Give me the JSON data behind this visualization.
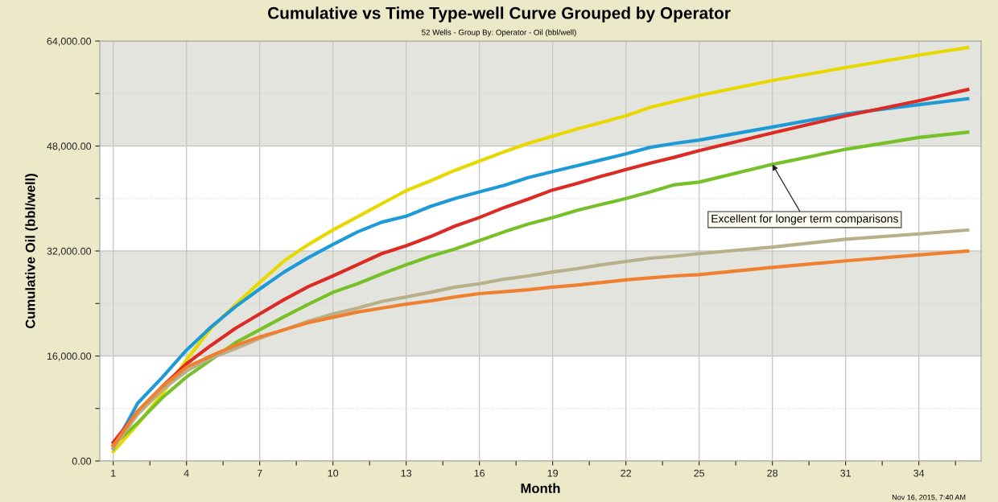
{
  "chart_data": {
    "type": "line",
    "title": "Cumulative vs Time Type-well Curve Grouped by Operator",
    "subtitle": "52 Wells - Group By: Operator - Oil (bbl/well)",
    "xlabel": "Month",
    "ylabel": "Cumulative Oil (bbl/well)",
    "x": [
      1,
      2,
      3,
      4,
      5,
      6,
      7,
      8,
      9,
      10,
      11,
      12,
      13,
      14,
      15,
      16,
      17,
      18,
      19,
      20,
      21,
      22,
      23,
      24,
      25,
      28,
      31,
      34,
      36
    ],
    "series": [
      {
        "color": "#e6d800",
        "values": [
          1400,
          5600,
          10200,
          15400,
          20200,
          23800,
          27200,
          30500,
          33000,
          35200,
          37200,
          39200,
          41200,
          42700,
          44300,
          45700,
          47100,
          48400,
          49500,
          50600,
          51600,
          52600,
          53900,
          54800,
          55700,
          58000,
          59950,
          61850,
          63000
        ]
      },
      {
        "color": "#1e9ad6",
        "values": [
          1900,
          8800,
          12700,
          16900,
          20400,
          23500,
          26200,
          28800,
          31000,
          33000,
          34900,
          36400,
          37300,
          38800,
          40000,
          41000,
          42000,
          43200,
          44100,
          45000,
          45900,
          46800,
          47800,
          48400,
          48900,
          50900,
          52900,
          54300,
          55200
        ]
      },
      {
        "color": "#dc2a24",
        "values": [
          2800,
          7500,
          11300,
          14800,
          17600,
          20200,
          22400,
          24600,
          26600,
          28200,
          29900,
          31600,
          32800,
          34200,
          35800,
          37100,
          38600,
          39900,
          41300,
          42300,
          43400,
          44400,
          45400,
          46300,
          47300,
          50000,
          52600,
          54900,
          56600
        ]
      },
      {
        "color": "#78c02a",
        "values": [
          2400,
          5800,
          9600,
          12800,
          15400,
          18000,
          20000,
          22000,
          23900,
          25700,
          27000,
          28500,
          29900,
          31200,
          32300,
          33600,
          34900,
          36100,
          37100,
          38200,
          39100,
          40000,
          41000,
          42100,
          42500,
          45200,
          47500,
          49300,
          50100
        ]
      },
      {
        "color": "#b8b08a",
        "values": [
          2000,
          7100,
          10800,
          13700,
          15700,
          17100,
          18700,
          20000,
          21300,
          22400,
          23300,
          24300,
          25000,
          25700,
          26500,
          27000,
          27700,
          28200,
          28800,
          29300,
          29900,
          30400,
          30900,
          31200,
          31600,
          32600,
          33800,
          34600,
          35200
        ]
      },
      {
        "color": "#ee8030",
        "values": [
          2300,
          7600,
          11300,
          14300,
          16000,
          17600,
          18900,
          20000,
          21100,
          21900,
          22700,
          23300,
          23900,
          24400,
          25000,
          25500,
          25800,
          26100,
          26500,
          26800,
          27200,
          27600,
          27900,
          28200,
          28400,
          29500,
          30500,
          31400,
          32000
        ]
      }
    ],
    "xlim": [
      0.45,
      36.55
    ],
    "xticks": [
      1,
      {
        "value": 2.5,
        "label": null
      },
      4,
      {
        "value": 5.5,
        "label": null
      },
      7,
      {
        "value": 8.5,
        "label": null
      },
      10,
      {
        "value": 11.5,
        "label": null
      },
      13,
      {
        "value": 14.5,
        "label": null
      },
      16,
      {
        "value": 17.5,
        "label": null
      },
      19,
      {
        "value": 20.5,
        "label": null
      },
      22,
      {
        "value": 23.5,
        "label": null
      },
      25,
      {
        "value": 26.5,
        "label": null
      },
      28,
      {
        "value": 29.5,
        "label": null
      },
      31,
      {
        "value": 32.5,
        "label": null
      },
      34,
      {
        "value": 35.5,
        "label": null
      }
    ],
    "ylim": [
      0,
      64000
    ],
    "yticks": [
      {
        "value": 0,
        "label": "0.00"
      },
      {
        "value": 8000,
        "label": null
      },
      {
        "value": 16000,
        "label": "16,000.00"
      },
      {
        "value": 24000,
        "label": null
      },
      {
        "value": 32000,
        "label": "32,000.00"
      },
      {
        "value": 40000,
        "label": null
      },
      {
        "value": 48000,
        "label": "48,000.00"
      },
      {
        "value": 56000,
        "label": null
      },
      {
        "value": 64000,
        "label": "64,000.00"
      }
    ],
    "bands": [
      {
        "axis": "y",
        "from": 16000,
        "to": 32000,
        "color": "#e4e4de"
      },
      {
        "axis": "y",
        "from": 48000,
        "to": 64000,
        "color": "#e4e4de"
      }
    ],
    "grid": true,
    "marker": "none",
    "line_style": "solid",
    "annotations": [
      {
        "text": "Excellent for longer term comparisons",
        "x": 28,
        "y": 45200
      },
      "Nov 16, 2015, 7:40 AM"
    ]
  }
}
